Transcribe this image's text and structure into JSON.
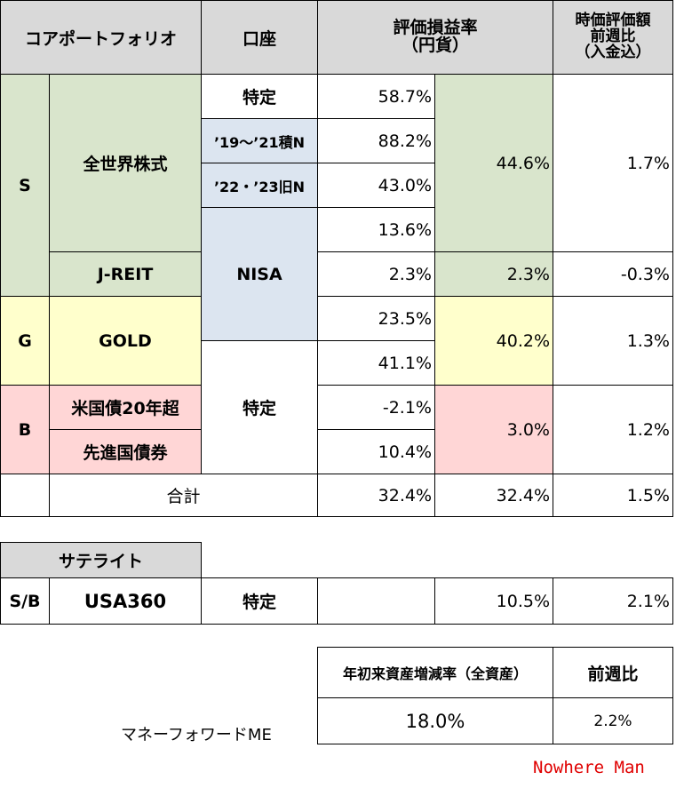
{
  "core_table": {
    "header": {
      "portfolio": "コアポートフォリオ",
      "account": "口座",
      "return": [
        "評価損益率",
        "（円貨）"
      ],
      "weekly": [
        "時価評価額",
        "前週比",
        "（入金込）"
      ]
    },
    "groups": [
      "S",
      "G",
      "B"
    ],
    "assets": [
      "全世界株式",
      "J-REIT",
      "GOLD",
      "米国債20年超",
      "先進国債券"
    ],
    "accounts": [
      "特定",
      "’19〜’21積N",
      "’22・’23旧N",
      "NISA",
      "特定"
    ],
    "row_returns": [
      "58.7%",
      "88.2%",
      "43.0%",
      "13.6%",
      "2.3%",
      "23.5%",
      "41.1%",
      "-2.1%",
      "10.4%"
    ],
    "asset_returns": [
      "44.6%",
      "2.3%",
      "40.2%",
      "3.0%"
    ],
    "weekly_changes": [
      "1.7%",
      "-0.3%",
      "1.3%",
      "1.2%"
    ],
    "total": {
      "label": "合計",
      "row_return": "32.4%",
      "asset_return": "32.4%",
      "weekly_change": "1.5%"
    }
  },
  "satellite_table": {
    "header": "サテライト",
    "group": "S/B",
    "asset": "USA360",
    "account": "特定",
    "asset_return": "10.5%",
    "weekly_change": "2.1%"
  },
  "summary_table": {
    "headers": [
      "年初来資産増減率（全資産）",
      "前週比"
    ],
    "values": [
      "18.0%",
      "2.2%"
    ],
    "source": "マネーフォワードME"
  },
  "signature": "Nowhere Man"
}
